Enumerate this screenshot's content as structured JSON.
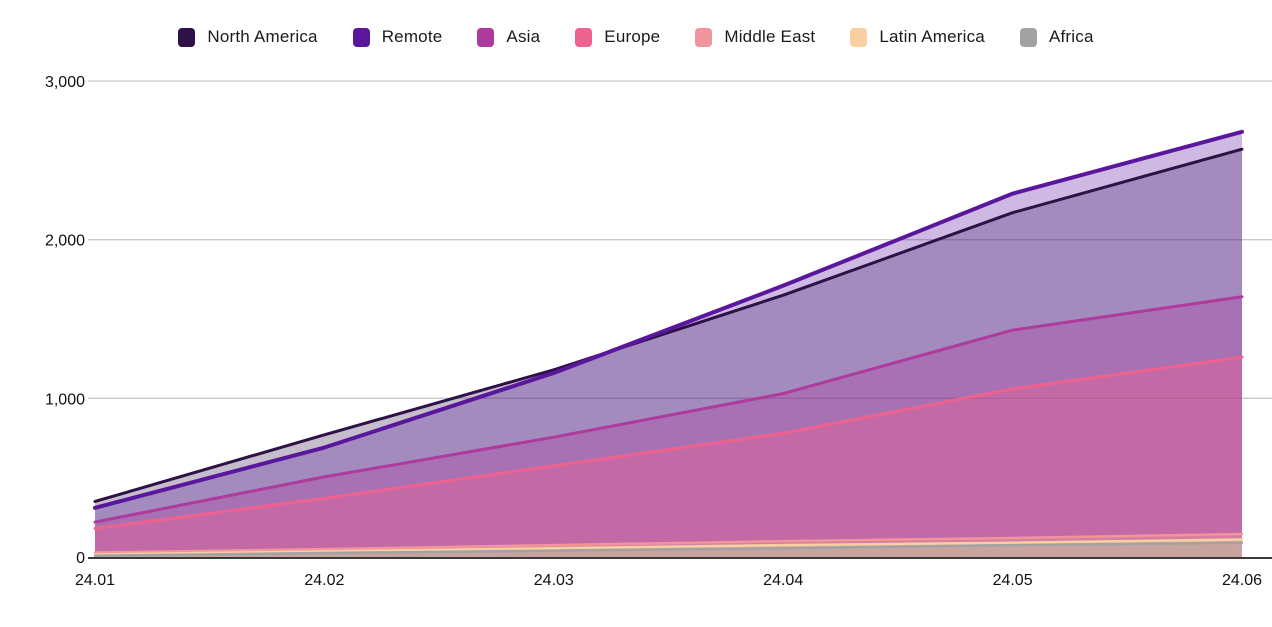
{
  "chart_data": {
    "type": "area",
    "title": "",
    "xlabel": "",
    "ylabel": "",
    "x": [
      "24.01",
      "24.02",
      "24.03",
      "24.04",
      "24.05",
      "24.06"
    ],
    "series": [
      {
        "name": "North America",
        "color": "#2e1147",
        "fill_opacity": 0.28,
        "stroke_width": 3,
        "values": [
          350,
          770,
          1180,
          1650,
          2170,
          2570
        ]
      },
      {
        "name": "Remote",
        "color": "#5b169e",
        "fill_opacity": 0.3,
        "stroke_width": 4,
        "values": [
          310,
          690,
          1160,
          1710,
          2290,
          2680
        ]
      },
      {
        "name": "Asia",
        "color": "#ae3a9e",
        "fill_opacity": 0.32,
        "stroke_width": 3,
        "values": [
          220,
          505,
          755,
          1030,
          1430,
          1640
        ]
      },
      {
        "name": "Europe",
        "color": "#ee6290",
        "fill_opacity": 0.4,
        "stroke_width": 3,
        "values": [
          180,
          370,
          575,
          780,
          1060,
          1260
        ]
      },
      {
        "name": "Middle East",
        "color": "#f0959b",
        "fill_opacity": 0.45,
        "stroke_width": 2.5,
        "values": [
          28,
          50,
          75,
          100,
          120,
          145
        ]
      },
      {
        "name": "Latin America",
        "color": "#f8cfa2",
        "fill_opacity": 0.5,
        "stroke_width": 2.5,
        "values": [
          16,
          35,
          55,
          75,
          90,
          110
        ]
      },
      {
        "name": "Africa",
        "color": "#a2a2a2",
        "fill_opacity": 0.45,
        "stroke_width": 2.5,
        "values": [
          8,
          25,
          40,
          55,
          75,
          90
        ]
      }
    ],
    "ylim": [
      0,
      3000
    ],
    "yticks": [
      {
        "value": 0,
        "label": "0"
      },
      {
        "value": 1000,
        "label": "1,000"
      },
      {
        "value": 2000,
        "label": "2,000"
      },
      {
        "value": 3000,
        "label": "3,000"
      }
    ],
    "grid": true,
    "legend_position": "top"
  }
}
